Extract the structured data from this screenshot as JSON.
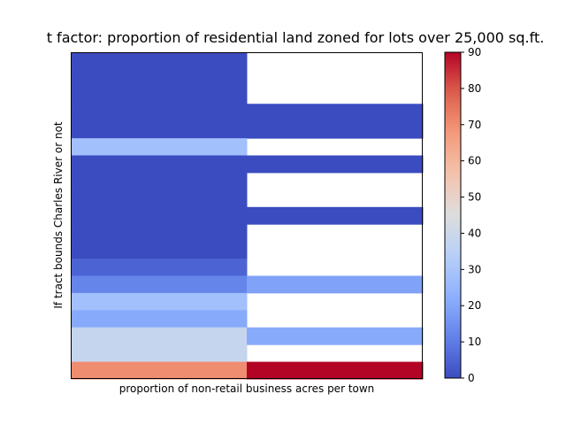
{
  "chart_data": {
    "type": "heatmap",
    "title": "t factor: proportion of residential land zoned for lots over 25,000 sq.ft.",
    "xlabel": "proportion of non-retail business acres per town",
    "ylabel": "If tract bounds Charles River or not",
    "colormap": "coolwarm",
    "vmin": 0,
    "vmax": 90,
    "colorbar_ticks": [
      0,
      10,
      20,
      30,
      40,
      50,
      60,
      70,
      80,
      90
    ],
    "columns": 2,
    "rows": 19,
    "cells": [
      [
        0,
        null
      ],
      [
        0,
        null
      ],
      [
        0,
        null
      ],
      [
        0,
        0
      ],
      [
        0,
        0
      ],
      [
        28,
        null
      ],
      [
        0,
        0
      ],
      [
        0,
        null
      ],
      [
        0,
        null
      ],
      [
        0,
        0
      ],
      [
        0,
        null
      ],
      [
        0,
        null
      ],
      [
        5,
        null
      ],
      [
        12,
        19
      ],
      [
        28,
        null
      ],
      [
        21,
        null
      ],
      [
        38,
        21
      ],
      [
        38,
        null
      ],
      [
        70,
        90
      ]
    ]
  }
}
